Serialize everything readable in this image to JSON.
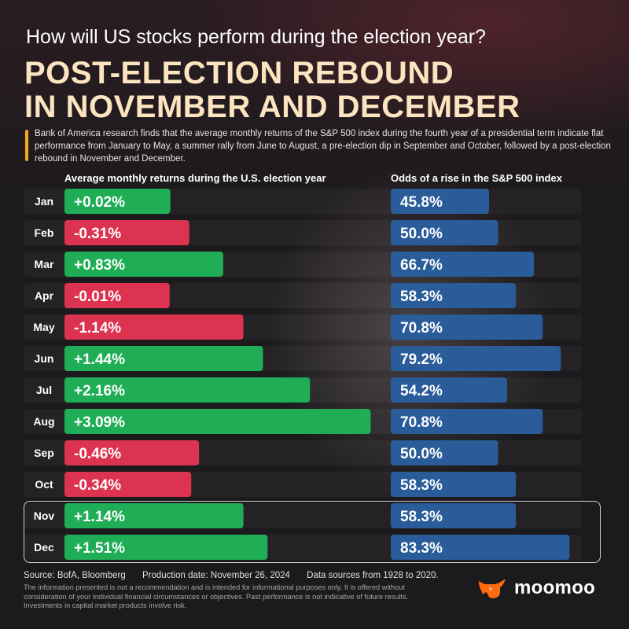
{
  "header": {
    "subtitle": "How will US stocks perform during the election year?",
    "title_line1": "POST-ELECTION REBOUND",
    "title_line2": "IN NOVEMBER AND DECEMBER",
    "description": "Bank of America research finds that the average monthly returns of the S&P 500 index during the fourth year of a presidential term indicate flat performance from January to May, a summer rally from June to August, a pre-election dip in September and October, followed by a post-election rebound in November and December."
  },
  "columns": {
    "returns_title": "Average monthly returns during the U.S. election year",
    "odds_title": "Odds of a rise in the S&P 500 index"
  },
  "chart_data": [
    {
      "type": "bar",
      "title": "Average monthly returns during the U.S. election year",
      "categories": [
        "Jan",
        "Feb",
        "Mar",
        "Apr",
        "May",
        "Jun",
        "Jul",
        "Aug",
        "Sep",
        "Oct",
        "Nov",
        "Dec"
      ],
      "series": [
        {
          "values": [
            0.02,
            -0.31,
            0.83,
            -0.01,
            -1.14,
            1.44,
            2.16,
            3.09,
            -0.46,
            -0.34,
            1.14,
            1.51
          ],
          "labels": [
            "+0.02%",
            "-0.31%",
            "+0.83%",
            "-0.01%",
            "-1.14%",
            "+1.44%",
            "+2.16%",
            "+3.09%",
            "-0.46%",
            "-0.34%",
            "+1.14%",
            "+1.51%"
          ]
        }
      ],
      "unit": "%",
      "orientation": "horizontal",
      "colors": {
        "positive": "#1fae55",
        "negative": "#dc3350"
      }
    },
    {
      "type": "bar",
      "title": "Odds of a rise in the S&P 500 index",
      "categories": [
        "Jan",
        "Feb",
        "Mar",
        "Apr",
        "May",
        "Jun",
        "Jul",
        "Aug",
        "Sep",
        "Oct",
        "Nov",
        "Dec"
      ],
      "series": [
        {
          "values": [
            45.8,
            50.0,
            66.7,
            58.3,
            70.8,
            79.2,
            54.2,
            70.8,
            50.0,
            58.3,
            58.3,
            83.3
          ],
          "labels": [
            "45.8%",
            "50.0%",
            "66.7%",
            "58.3%",
            "70.8%",
            "79.2%",
            "54.2%",
            "70.8%",
            "50.0%",
            "58.3%",
            "58.3%",
            "83.3%"
          ]
        }
      ],
      "unit": "%",
      "orientation": "horizontal",
      "colors": {
        "bar": "#2a5c9a"
      }
    }
  ],
  "highlighted_months": [
    "Nov",
    "Dec"
  ],
  "footer": {
    "source": "Source: BofA, Bloomberg",
    "production_date": "Production date: November 26, 2024",
    "data_sources": "Data sources from 1928 to 2020.",
    "disclaimer": "The information presented is not a recommendation and is intended for informational purposes only. It is offered without consideration of your individual financial circumstances or objectives. Past performance is not indicative of future results. Investments in capital market products involve risk."
  },
  "brand": {
    "name": "moomoo",
    "icon": "moomoo-bull-icon",
    "accent": "#ff6a13"
  }
}
